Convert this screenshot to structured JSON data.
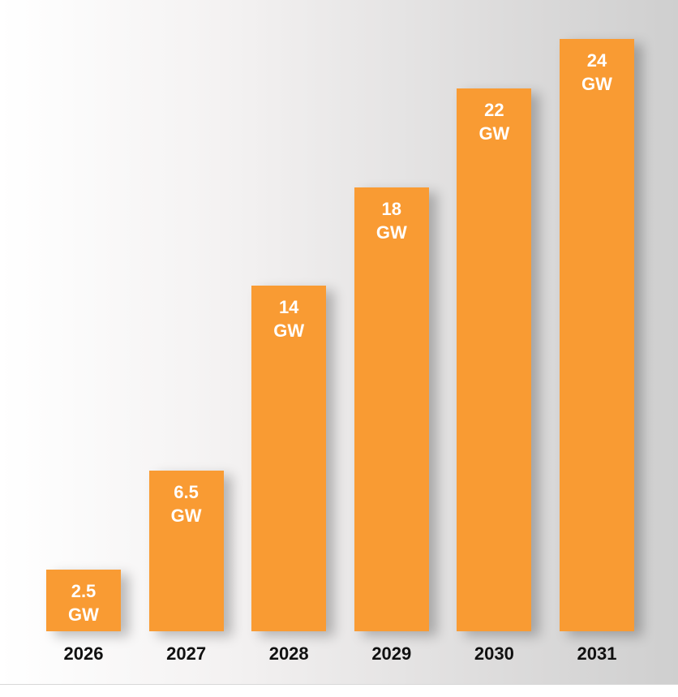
{
  "chart_data": {
    "type": "bar",
    "categories": [
      "2026",
      "2027",
      "2028",
      "2029",
      "2030",
      "2031"
    ],
    "values": [
      2.5,
      6.5,
      14,
      18,
      22,
      24
    ],
    "value_labels": [
      "2.5 GW",
      "6.5 GW",
      "14 GW",
      "18 GW",
      "22 GW",
      "24 GW"
    ],
    "color": "#f99b33"
  }
}
